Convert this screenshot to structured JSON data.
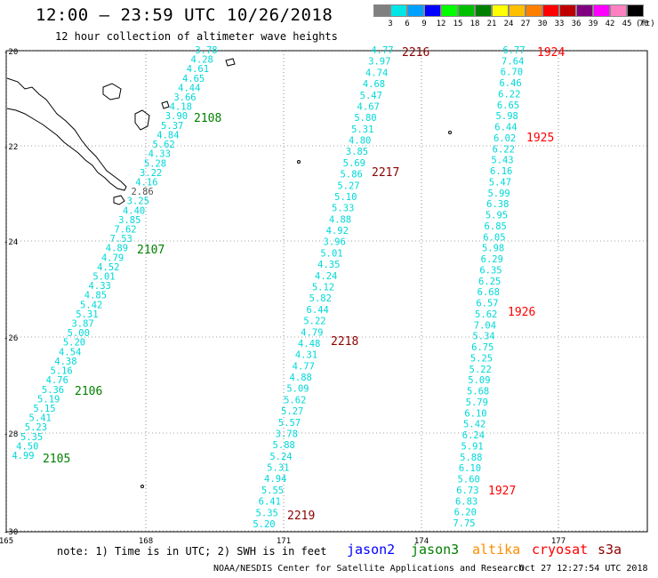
{
  "title": "12:00 – 23:59 UTC 10/26/2018",
  "subtitle": "12 hour collection of altimeter wave heights",
  "color_scale": {
    "labels": [
      "3",
      "6",
      "9",
      "12",
      "15",
      "18",
      "21",
      "24",
      "27",
      "30",
      "33",
      "36",
      "39",
      "42",
      "45",
      "70"
    ],
    "unit": "(ft)",
    "colors": [
      "#808080",
      "#00e5e5",
      "#00a0ff",
      "#0000ff",
      "#00ff00",
      "#00c000",
      "#008000",
      "#ffff00",
      "#ffc000",
      "#ff8000",
      "#ff0000",
      "#c00000",
      "#800080",
      "#ff00ff",
      "#ff80c0",
      "#000000"
    ]
  },
  "lat_ticks": [
    "-20",
    "-22",
    "-24",
    "-26",
    "-28",
    "-30"
  ],
  "lon_ticks": [
    "165",
    "168",
    "171",
    "174",
    "177"
  ],
  "tracks": [
    {
      "color": "#00d8d8",
      "start": [
        232,
        60
      ],
      "end": [
        26,
        516
      ],
      "values": [
        "3.78",
        "4.28",
        "4.61",
        "4.65",
        "4.44",
        "3.66",
        "4.18",
        "3.90",
        "5.37",
        "4.84",
        "5.62",
        "4.33",
        "5.28",
        "3.22",
        "4.16",
        "2.86",
        "3.25",
        "4.40",
        "3.85",
        "7.62",
        "7.53",
        "4.89",
        "4.79",
        "4.52",
        "5.01",
        "4.33",
        "4.85",
        "5.42",
        "5.31",
        "3.87",
        "5.00",
        "5.20",
        "4.54",
        "4.38",
        "5.16",
        "4.76",
        "5.36",
        "5.19",
        "5.15",
        "5.41",
        "5.23",
        "5.35",
        "4.50",
        "4.99"
      ]
    },
    {
      "color": "#00d8d8",
      "start": [
        430,
        60
      ],
      "end": [
        297,
        593
      ],
      "values": [
        "4.77",
        "3.97",
        "4.74",
        "4.68",
        "5.47",
        "4.67",
        "5.80",
        "5.31",
        "4.80",
        "3.85",
        "5.69",
        "5.86",
        "5.27",
        "5.10",
        "5.33",
        "4.88",
        "4.92",
        "3.96",
        "5.01",
        "4.35",
        "4.24",
        "5.12",
        "5.82",
        "6.44",
        "5.22",
        "4.79",
        "4.48",
        "4.31",
        "4.77",
        "4.88",
        "5.09",
        "5.62",
        "5.27",
        "5.57",
        "3.78",
        "5.88",
        "5.24",
        "5.31",
        "4.94",
        "5.55",
        "6.41",
        "5.35",
        "5.20"
      ]
    },
    {
      "color": "#00d8d8",
      "start": [
        578,
        60
      ],
      "end": [
        522,
        592
      ],
      "values": [
        "6.77",
        "7.64",
        "6.70",
        "6.46",
        "6.22",
        "6.65",
        "5.98",
        "6.44",
        "6.02",
        "6.22",
        "5.43",
        "6.16",
        "5.47",
        "5.99",
        "6.38",
        "5.95",
        "6.85",
        "6.05",
        "5.98",
        "6.29",
        "6.35",
        "6.25",
        "6.68",
        "6.57",
        "5.62",
        "7.04",
        "5.34",
        "6.75",
        "5.25",
        "5.22",
        "5.09",
        "5.68",
        "5.79",
        "6.10",
        "5.42",
        "6.24",
        "5.91",
        "5.88",
        "6.10",
        "5.60",
        "6.73",
        "6.83",
        "6.20",
        "7.75"
      ]
    }
  ],
  "time_labels": [
    {
      "text": "2108",
      "color": "#008000",
      "pos": [
        218,
        137
      ]
    },
    {
      "text": "2107",
      "color": "#008000",
      "pos": [
        154,
        285
      ]
    },
    {
      "text": "2106",
      "color": "#008000",
      "pos": [
        84,
        444
      ]
    },
    {
      "text": "2105",
      "color": "#008000",
      "pos": [
        48,
        520
      ]
    },
    {
      "text": "2216",
      "color": "#8b0000",
      "pos": [
        452,
        63
      ]
    },
    {
      "text": "2217",
      "color": "#8b0000",
      "pos": [
        418,
        198
      ]
    },
    {
      "text": "2218",
      "color": "#8b0000",
      "pos": [
        372,
        388
      ]
    },
    {
      "text": "2219",
      "color": "#8b0000",
      "pos": [
        323,
        584
      ]
    },
    {
      "text": "1924",
      "color": "#ff0000",
      "pos": [
        604,
        63
      ]
    },
    {
      "text": "1925",
      "color": "#ff0000",
      "pos": [
        592,
        159
      ]
    },
    {
      "text": "1926",
      "color": "#ff0000",
      "pos": [
        571,
        355
      ]
    },
    {
      "text": "1927",
      "color": "#ff0000",
      "pos": [
        549,
        556
      ]
    }
  ],
  "note": "note: 1) Time is in UTC; 2) SWH is in feet",
  "satellites": [
    {
      "name": "jason2",
      "color": "#0000ff"
    },
    {
      "name": "jason3",
      "color": "#008000"
    },
    {
      "name": "altika",
      "color": "#ff8c00"
    },
    {
      "name": "cryosat",
      "color": "#ff0000"
    },
    {
      "name": "s3a",
      "color": "#8b0000"
    }
  ],
  "credit": "NOAA/NESDIS Center for Satellite Applications and Research",
  "timestamp": "Oct 27 12:27:54 UTC 2018"
}
